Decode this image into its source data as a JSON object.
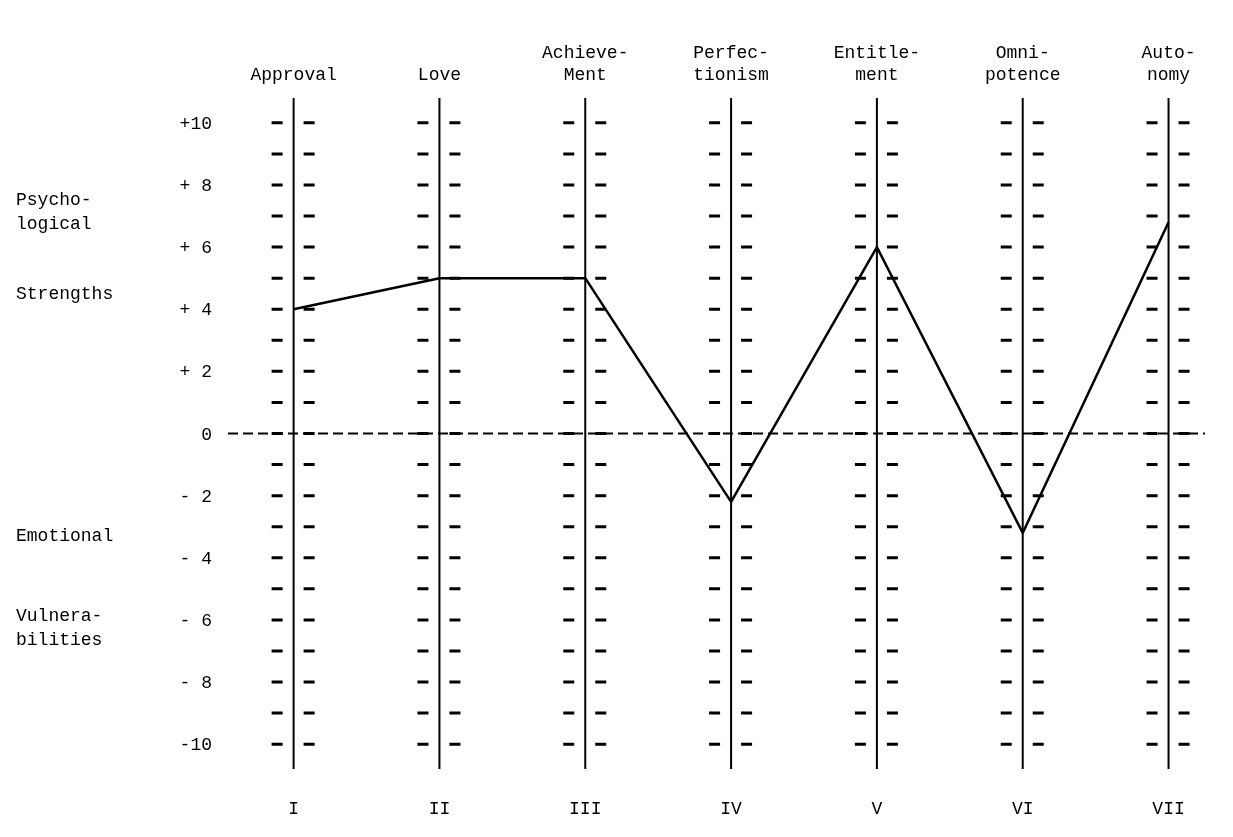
{
  "chart_data": {
    "type": "line",
    "categories": [
      "Approval",
      "Love",
      "Achieve-\nMent",
      "Perfec-\ntionism",
      "Entitle-\nment",
      "Omni-\npotence",
      "Auto-\nnomy"
    ],
    "series": [
      {
        "color": "#000000",
        "values": [
          4,
          5,
          5,
          -2.2,
          6,
          -3.2,
          6.8
        ]
      }
    ],
    "ylim": [
      -10.8,
      10.8
    ],
    "yticks": [
      {
        "value": 10,
        "label": "+10"
      },
      {
        "value": 9,
        "label": null
      },
      {
        "value": 8,
        "label": "+ 8"
      },
      {
        "value": 7,
        "label": null
      },
      {
        "value": 6,
        "label": "+ 6"
      },
      {
        "value": 5,
        "label": null
      },
      {
        "value": 4,
        "label": "+ 4"
      },
      {
        "value": 3,
        "label": null
      },
      {
        "value": 2,
        "label": "+ 2"
      },
      {
        "value": 1,
        "label": null
      },
      0,
      {
        "value": -1,
        "label": null
      },
      {
        "value": -2,
        "label": "- 2"
      },
      {
        "value": -3,
        "label": null
      },
      {
        "value": -4,
        "label": "- 4"
      },
      {
        "value": -5,
        "label": null
      },
      {
        "value": -6,
        "label": "- 6"
      },
      {
        "value": -7,
        "label": null
      },
      {
        "value": -8,
        "label": "- 8"
      },
      {
        "value": -9,
        "label": null
      },
      {
        "value": -10,
        "label": "-10"
      }
    ],
    "grid": true,
    "marker": "none",
    "line_style": "solid",
    "ref_lines": [
      {
        "axis": "y",
        "value": 0,
        "line_style": "dashed",
        "color": "#000000"
      }
    ],
    "annotations": [
      "Psycho-\nlogical",
      "Strengths",
      "Emotional",
      "Vulnera-\nbilities",
      "I",
      "II",
      "III",
      "IV",
      "V",
      "VI",
      "VII"
    ]
  }
}
